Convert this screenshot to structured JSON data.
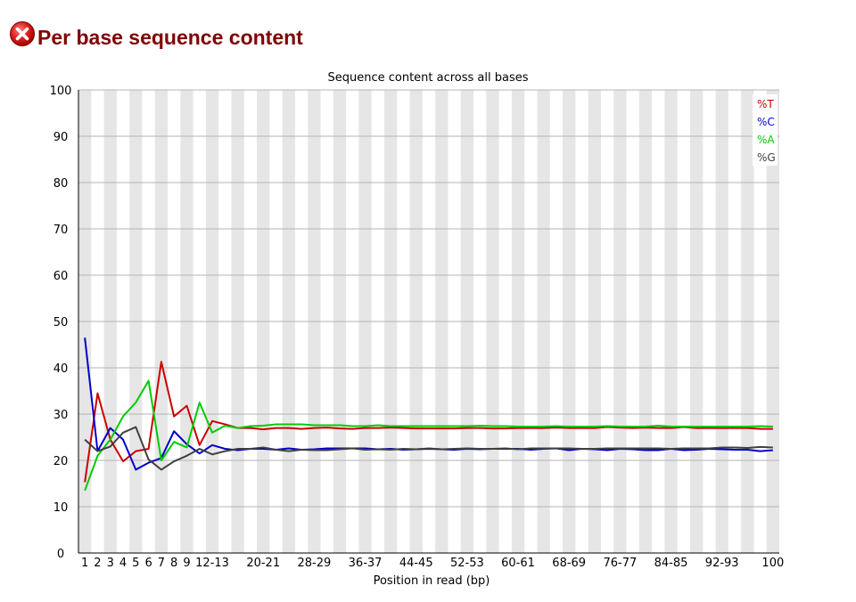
{
  "page": {
    "status_icon": "fail-cross-icon",
    "title": "Per base sequence content"
  },
  "colors": {
    "T": "#cc0000",
    "C": "#0000cc",
    "A": "#00cc00",
    "G": "#404040",
    "title": "#800000",
    "band": "#e6e6e6",
    "grid": "#b4b4b4"
  },
  "chart_data": {
    "type": "line",
    "title": "Sequence content across all bases",
    "xlabel": "Position in read (bp)",
    "ylabel": "",
    "ylim": [
      0,
      100
    ],
    "yticks": [
      0,
      10,
      20,
      30,
      40,
      50,
      60,
      70,
      80,
      90,
      100
    ],
    "grid": true,
    "legend_position": "top-right",
    "categories": [
      "1",
      "2",
      "3",
      "4",
      "5",
      "6",
      "7",
      "8",
      "9",
      "10-11",
      "12-13",
      "14-15",
      "16-17",
      "18-19",
      "20-21",
      "22-23",
      "24-25",
      "26-27",
      "28-29",
      "30-31",
      "32-33",
      "34-35",
      "36-37",
      "38-39",
      "40-41",
      "42-43",
      "44-45",
      "46-47",
      "48-49",
      "50-51",
      "52-53",
      "54-55",
      "56-57",
      "58-59",
      "60-61",
      "62-63",
      "64-65",
      "66-67",
      "68-69",
      "70-71",
      "72-73",
      "74-75",
      "76-77",
      "78-79",
      "80-81",
      "82-83",
      "84-85",
      "86-87",
      "88-89",
      "90-91",
      "92-93",
      "94-95",
      "96-97",
      "98-99",
      "100"
    ],
    "tick_labels": [
      "1",
      "2",
      "3",
      "4",
      "5",
      "6",
      "7",
      "8",
      "9",
      "",
      "12-13",
      "",
      "",
      "",
      "20-21",
      "",
      "",
      "",
      "28-29",
      "",
      "",
      "",
      "36-37",
      "",
      "",
      "",
      "44-45",
      "",
      "",
      "",
      "52-53",
      "",
      "",
      "",
      "60-61",
      "",
      "",
      "",
      "68-69",
      "",
      "",
      "",
      "76-77",
      "",
      "",
      "",
      "84-85",
      "",
      "",
      "",
      "92-93",
      "",
      "",
      "",
      "100"
    ],
    "series": [
      {
        "name": "%T",
        "color": "#cc0000",
        "values": [
          15.3,
          34.5,
          24.5,
          19.8,
          22.0,
          22.5,
          41.3,
          29.5,
          31.8,
          23.3,
          28.5,
          27.8,
          27.0,
          27.0,
          26.7,
          27.0,
          27.0,
          26.8,
          27.0,
          27.1,
          26.9,
          26.8,
          27.0,
          27.0,
          27.1,
          27.0,
          26.9,
          26.9,
          26.9,
          26.9,
          27.0,
          27.0,
          26.9,
          26.9,
          27.0,
          27.0,
          27.0,
          27.1,
          27.0,
          27.0,
          27.0,
          27.2,
          27.1,
          27.0,
          27.1,
          27.0,
          27.0,
          27.2,
          27.0,
          27.0,
          27.0,
          27.0,
          27.0,
          26.8,
          26.8
        ]
      },
      {
        "name": "%C",
        "color": "#0000cc",
        "values": [
          46.5,
          22.0,
          27.0,
          24.5,
          18.0,
          19.5,
          20.5,
          26.3,
          23.5,
          21.5,
          23.3,
          22.5,
          22.2,
          22.5,
          22.5,
          22.3,
          22.6,
          22.3,
          22.4,
          22.6,
          22.6,
          22.6,
          22.6,
          22.4,
          22.5,
          22.3,
          22.4,
          22.5,
          22.4,
          22.3,
          22.5,
          22.4,
          22.5,
          22.5,
          22.5,
          22.3,
          22.5,
          22.6,
          22.2,
          22.5,
          22.4,
          22.2,
          22.5,
          22.4,
          22.2,
          22.2,
          22.5,
          22.2,
          22.3,
          22.5,
          22.4,
          22.3,
          22.3,
          22.0,
          22.2
        ]
      },
      {
        "name": "%A",
        "color": "#00cc00",
        "values": [
          13.5,
          21.0,
          24.5,
          29.5,
          32.5,
          37.2,
          20.0,
          24.0,
          22.8,
          32.5,
          26.0,
          27.5,
          27.0,
          27.4,
          27.5,
          27.8,
          27.8,
          27.8,
          27.6,
          27.6,
          27.6,
          27.4,
          27.4,
          27.6,
          27.4,
          27.4,
          27.4,
          27.4,
          27.4,
          27.4,
          27.4,
          27.5,
          27.4,
          27.4,
          27.3,
          27.3,
          27.3,
          27.4,
          27.3,
          27.3,
          27.3,
          27.4,
          27.3,
          27.3,
          27.3,
          27.5,
          27.3,
          27.3,
          27.3,
          27.3,
          27.3,
          27.3,
          27.3,
          27.4,
          27.3
        ]
      },
      {
        "name": "%G",
        "color": "#404040",
        "values": [
          24.5,
          22.0,
          23.0,
          26.0,
          27.2,
          20.2,
          18.0,
          19.8,
          21.0,
          22.5,
          21.3,
          22.0,
          22.5,
          22.5,
          22.8,
          22.3,
          22.0,
          22.3,
          22.2,
          22.2,
          22.4,
          22.6,
          22.3,
          22.4,
          22.3,
          22.5,
          22.4,
          22.6,
          22.4,
          22.5,
          22.6,
          22.5,
          22.5,
          22.6,
          22.4,
          22.6,
          22.6,
          22.6,
          22.6,
          22.5,
          22.5,
          22.6,
          22.6,
          22.6,
          22.6,
          22.6,
          22.5,
          22.6,
          22.6,
          22.6,
          22.8,
          22.8,
          22.7,
          22.9,
          22.8
        ]
      }
    ]
  }
}
